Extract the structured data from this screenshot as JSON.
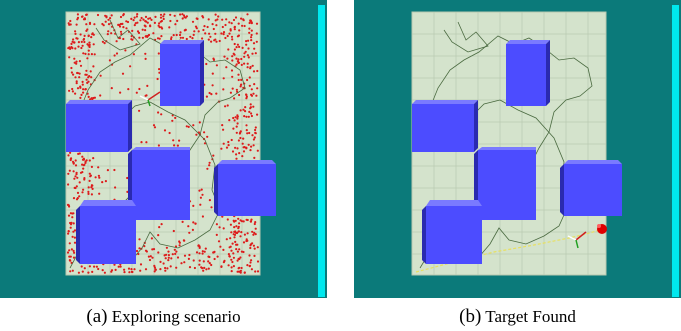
{
  "figure": {
    "panels": [
      {
        "caption_tag": "(a)",
        "caption_text": "Exploring scenario"
      },
      {
        "caption_tag": "(b)",
        "caption_text": "Target Found"
      }
    ]
  },
  "colors": {
    "background": "#0b7a7a",
    "floor": "#d4e3cc",
    "edge_bar": "#00e8ee",
    "box_front": "#4c4cff",
    "box_top": "#7a7aff",
    "box_side": "#2a2ab0",
    "tree_path": "#4a6a40",
    "samples": "#dd1b1b",
    "found_path": "#e8e060",
    "target": "#e00000"
  }
}
